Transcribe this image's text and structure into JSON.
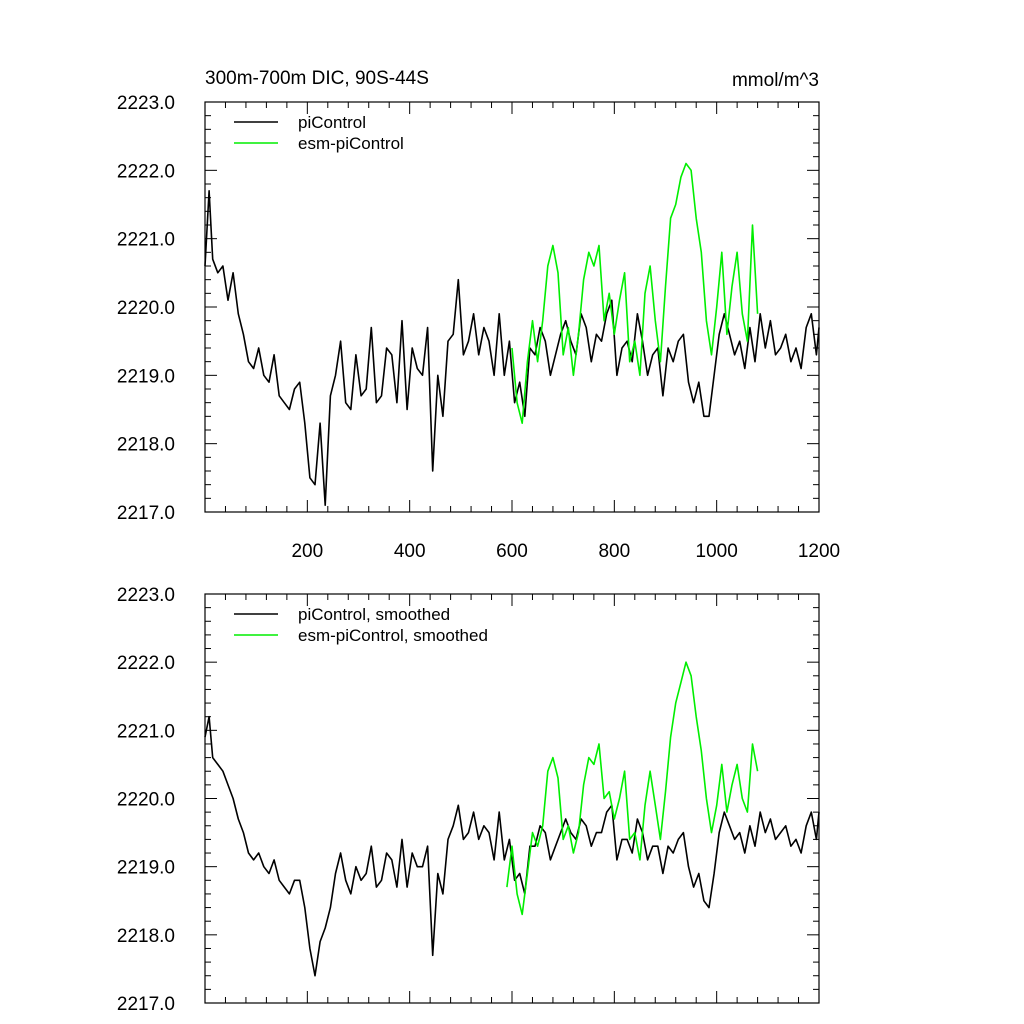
{
  "chart_data": [
    {
      "type": "line",
      "title": "300m-700m DIC, 90S-44S",
      "units": "mmol/m^3",
      "xlim": [
        0,
        1200
      ],
      "ylim": [
        2217.0,
        2223.0
      ],
      "x_ticks": [
        200,
        400,
        600,
        800,
        1000,
        1200
      ],
      "x_tick_labels": [
        "200",
        "400",
        "600",
        "800",
        "1000",
        "1200"
      ],
      "y_ticks": [
        2217.0,
        2218.0,
        2219.0,
        2220.0,
        2221.0,
        2222.0,
        2223.0
      ],
      "y_tick_labels": [
        "2217.0",
        "2218.0",
        "2219.0",
        "2220.0",
        "2221.0",
        "2222.0",
        "2223.0"
      ],
      "legend": [
        "piControl",
        "esm-piControl"
      ],
      "legend_position": "top-left",
      "series": [
        {
          "name": "piControl",
          "color": "#000000",
          "x": [
            0,
            8,
            15,
            25,
            35,
            45,
            55,
            65,
            75,
            85,
            95,
            105,
            115,
            125,
            135,
            145,
            155,
            165,
            175,
            185,
            195,
            205,
            215,
            225,
            235,
            245,
            255,
            265,
            275,
            285,
            295,
            305,
            315,
            325,
            335,
            345,
            355,
            365,
            375,
            385,
            395,
            405,
            415,
            425,
            435,
            445,
            455,
            465,
            475,
            485,
            495,
            505,
            515,
            525,
            535,
            545,
            555,
            565,
            575,
            585,
            595,
            605,
            615,
            625,
            635,
            645,
            655,
            665,
            675,
            685,
            695,
            705,
            715,
            725,
            735,
            745,
            755,
            765,
            775,
            785,
            795,
            805,
            815,
            825,
            835,
            845,
            855,
            865,
            875,
            885,
            895,
            905,
            915,
            925,
            935,
            945,
            955,
            965,
            975,
            985,
            995,
            1005,
            1015,
            1025,
            1035,
            1045,
            1055,
            1065,
            1075,
            1085,
            1095,
            1105,
            1115,
            1125,
            1135,
            1145,
            1155,
            1165,
            1175,
            1185,
            1195,
            1200
          ],
          "values": [
            2220.6,
            2221.7,
            2220.7,
            2220.5,
            2220.6,
            2220.1,
            2220.5,
            2219.9,
            2219.6,
            2219.2,
            2219.1,
            2219.4,
            2219.0,
            2218.9,
            2219.3,
            2218.7,
            2218.6,
            2218.5,
            2218.8,
            2218.9,
            2218.3,
            2217.5,
            2217.4,
            2218.3,
            2217.1,
            2218.7,
            2219.0,
            2219.5,
            2218.6,
            2218.5,
            2219.3,
            2218.7,
            2218.8,
            2219.7,
            2218.6,
            2218.7,
            2219.4,
            2219.3,
            2218.6,
            2219.8,
            2218.5,
            2219.4,
            2219.1,
            2219.0,
            2219.7,
            2217.6,
            2219.0,
            2218.4,
            2219.5,
            2219.6,
            2220.4,
            2219.3,
            2219.5,
            2219.9,
            2219.3,
            2219.7,
            2219.5,
            2219.0,
            2219.9,
            2219.0,
            2219.5,
            2218.6,
            2218.9,
            2218.4,
            2219.4,
            2219.3,
            2219.7,
            2219.5,
            2219.0,
            2219.3,
            2219.6,
            2219.8,
            2219.5,
            2219.3,
            2219.9,
            2219.7,
            2219.2,
            2219.6,
            2219.5,
            2219.9,
            2220.1,
            2219.0,
            2219.4,
            2219.5,
            2219.2,
            2219.9,
            2219.5,
            2219.0,
            2219.3,
            2219.4,
            2218.7,
            2219.4,
            2219.2,
            2219.5,
            2219.6,
            2218.9,
            2218.6,
            2218.9,
            2218.4,
            2218.4,
            2219.0,
            2219.6,
            2219.9,
            2219.6,
            2219.3,
            2219.5,
            2219.1,
            2219.7,
            2219.2,
            2219.9,
            2219.4,
            2219.8,
            2219.3,
            2219.4,
            2219.6,
            2219.2,
            2219.4,
            2219.1,
            2219.7,
            2219.9,
            2219.3,
            2219.7
          ]
        },
        {
          "name": "esm-piControl",
          "color": "#00ee00",
          "x": [
            600,
            610,
            620,
            630,
            640,
            650,
            660,
            670,
            680,
            690,
            700,
            710,
            720,
            730,
            740,
            750,
            760,
            770,
            780,
            790,
            800,
            810,
            820,
            830,
            840,
            850,
            860,
            870,
            880,
            890,
            900,
            910,
            920,
            930,
            940,
            950,
            960,
            970,
            980,
            990,
            1000,
            1010,
            1020,
            1030,
            1040,
            1050,
            1060,
            1070,
            1080
          ],
          "values": [
            2219.4,
            2218.6,
            2218.3,
            2219.2,
            2219.8,
            2219.2,
            2219.8,
            2220.6,
            2220.9,
            2220.5,
            2219.3,
            2219.7,
            2219.0,
            2219.6,
            2220.4,
            2220.8,
            2220.6,
            2220.9,
            2219.8,
            2220.2,
            2219.6,
            2220.1,
            2220.5,
            2219.2,
            2219.5,
            2219.0,
            2220.2,
            2220.6,
            2219.8,
            2219.2,
            2220.3,
            2221.3,
            2221.5,
            2221.9,
            2222.1,
            2222.0,
            2221.3,
            2220.8,
            2219.8,
            2219.3,
            2220.0,
            2220.8,
            2219.6,
            2220.3,
            2220.8,
            2219.9,
            2219.5,
            2221.2,
            2219.9
          ]
        }
      ]
    },
    {
      "type": "line",
      "title": "",
      "xlim": [
        0,
        1200
      ],
      "ylim": [
        2217.0,
        2223.0
      ],
      "y_ticks": [
        2217.0,
        2218.0,
        2219.0,
        2220.0,
        2221.0,
        2222.0,
        2223.0
      ],
      "y_tick_labels": [
        "2217.0",
        "2218.0",
        "2219.0",
        "2220.0",
        "2221.0",
        "2222.0",
        "2223.0"
      ],
      "legend": [
        "piControl, smoothed",
        "esm-piControl, smoothed"
      ],
      "legend_position": "top-left",
      "series": [
        {
          "name": "piControl, smoothed",
          "color": "#000000",
          "x": [
            0,
            8,
            15,
            25,
            35,
            45,
            55,
            65,
            75,
            85,
            95,
            105,
            115,
            125,
            135,
            145,
            155,
            165,
            175,
            185,
            195,
            205,
            215,
            225,
            235,
            245,
            255,
            265,
            275,
            285,
            295,
            305,
            315,
            325,
            335,
            345,
            355,
            365,
            375,
            385,
            395,
            405,
            415,
            425,
            435,
            445,
            455,
            465,
            475,
            485,
            495,
            505,
            515,
            525,
            535,
            545,
            555,
            565,
            575,
            585,
            595,
            605,
            615,
            625,
            635,
            645,
            655,
            665,
            675,
            685,
            695,
            705,
            715,
            725,
            735,
            745,
            755,
            765,
            775,
            785,
            795,
            805,
            815,
            825,
            835,
            845,
            855,
            865,
            875,
            885,
            895,
            905,
            915,
            925,
            935,
            945,
            955,
            965,
            975,
            985,
            995,
            1005,
            1015,
            1025,
            1035,
            1045,
            1055,
            1065,
            1075,
            1085,
            1095,
            1105,
            1115,
            1125,
            1135,
            1145,
            1155,
            1165,
            1175,
            1185,
            1195,
            1200
          ],
          "values": [
            2220.9,
            2221.2,
            2220.6,
            2220.5,
            2220.4,
            2220.2,
            2220.0,
            2219.7,
            2219.5,
            2219.2,
            2219.1,
            2219.2,
            2219.0,
            2218.9,
            2219.1,
            2218.8,
            2218.7,
            2218.6,
            2218.8,
            2218.8,
            2218.4,
            2217.8,
            2217.4,
            2217.9,
            2218.1,
            2218.4,
            2218.9,
            2219.2,
            2218.8,
            2218.6,
            2219.0,
            2218.8,
            2218.9,
            2219.3,
            2218.7,
            2218.8,
            2219.2,
            2219.1,
            2218.7,
            2219.4,
            2218.7,
            2219.2,
            2219.0,
            2219.0,
            2219.3,
            2217.7,
            2218.9,
            2218.6,
            2219.4,
            2219.6,
            2219.9,
            2219.4,
            2219.5,
            2219.8,
            2219.4,
            2219.6,
            2219.5,
            2219.1,
            2219.8,
            2219.1,
            2219.4,
            2218.8,
            2218.9,
            2218.6,
            2219.3,
            2219.3,
            2219.6,
            2219.5,
            2219.1,
            2219.3,
            2219.5,
            2219.7,
            2219.5,
            2219.4,
            2219.7,
            2219.6,
            2219.3,
            2219.5,
            2219.5,
            2219.8,
            2219.9,
            2219.1,
            2219.4,
            2219.4,
            2219.2,
            2219.7,
            2219.5,
            2219.1,
            2219.3,
            2219.3,
            2218.9,
            2219.3,
            2219.2,
            2219.4,
            2219.5,
            2219.0,
            2218.7,
            2218.9,
            2218.5,
            2218.4,
            2218.9,
            2219.5,
            2219.8,
            2219.6,
            2219.4,
            2219.5,
            2219.2,
            2219.6,
            2219.3,
            2219.8,
            2219.5,
            2219.7,
            2219.4,
            2219.5,
            2219.6,
            2219.3,
            2219.4,
            2219.2,
            2219.6,
            2219.8,
            2219.4,
            2219.8
          ]
        },
        {
          "name": "esm-piControl, smoothed",
          "color": "#00ee00",
          "x": [
            590,
            600,
            610,
            620,
            630,
            640,
            650,
            660,
            670,
            680,
            690,
            700,
            710,
            720,
            730,
            740,
            750,
            760,
            770,
            780,
            790,
            800,
            810,
            820,
            830,
            840,
            850,
            860,
            870,
            880,
            890,
            900,
            910,
            920,
            930,
            940,
            950,
            960,
            970,
            980,
            990,
            1000,
            1010,
            1020,
            1030,
            1040,
            1050,
            1060,
            1070,
            1080
          ],
          "values": [
            2218.7,
            2219.3,
            2218.6,
            2218.3,
            2218.9,
            2219.5,
            2219.3,
            2219.6,
            2220.4,
            2220.6,
            2220.3,
            2219.4,
            2219.6,
            2219.2,
            2219.5,
            2220.2,
            2220.6,
            2220.5,
            2220.8,
            2220.0,
            2220.1,
            2219.7,
            2220.0,
            2220.4,
            2219.4,
            2219.5,
            2219.1,
            2219.9,
            2220.4,
            2219.9,
            2219.4,
            2220.1,
            2220.9,
            2221.4,
            2221.7,
            2222.0,
            2221.8,
            2221.2,
            2220.7,
            2220.0,
            2219.5,
            2219.9,
            2220.5,
            2219.8,
            2220.2,
            2220.5,
            2220.0,
            2219.8,
            2220.8,
            2220.4
          ]
        }
      ]
    }
  ]
}
